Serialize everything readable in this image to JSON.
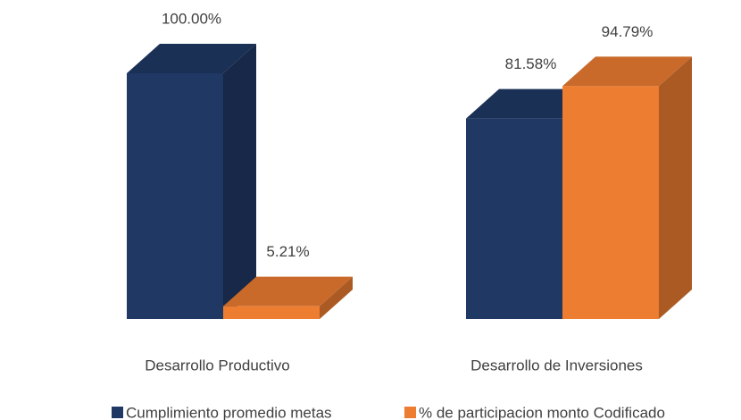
{
  "chart_data": {
    "type": "bar3d",
    "categories": [
      "Desarrollo Productivo",
      "Desarrollo de Inversiones"
    ],
    "series": [
      {
        "name": "Cumplimiento promedio metas",
        "color": "#203864",
        "values": [
          100,
          81.58
        ],
        "value_labels": [
          "100.00%",
          "81.58%"
        ]
      },
      {
        "name": "% de participacion monto Codificado",
        "color": "#ed7d31",
        "values": [
          5.21,
          94.79
        ],
        "value_labels": [
          "5.21%",
          "94.79%"
        ]
      }
    ],
    "ylim": [
      0,
      100
    ],
    "legend": "bottom"
  }
}
